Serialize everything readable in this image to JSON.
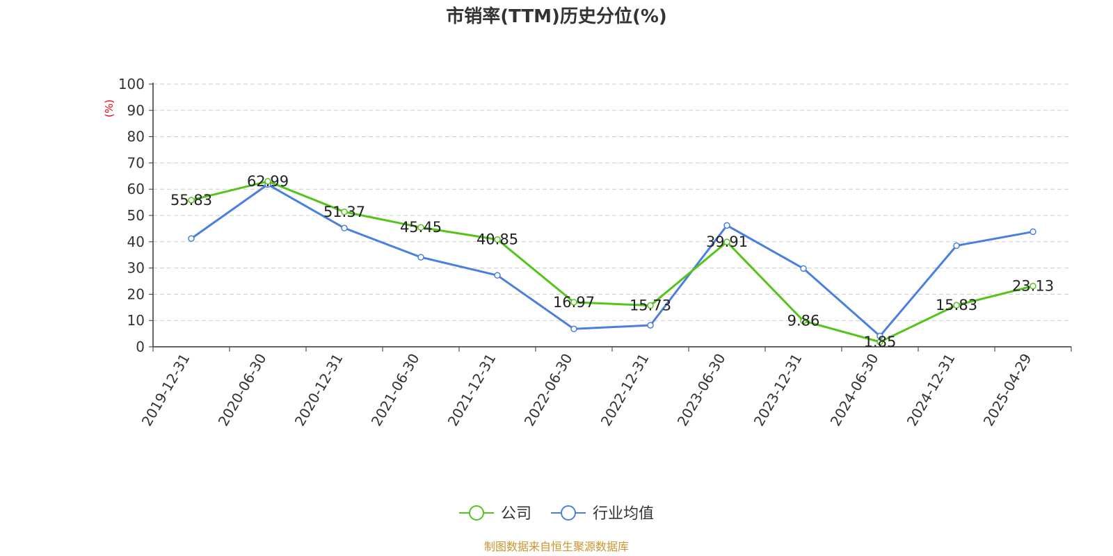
{
  "chart_data": {
    "type": "line",
    "title": "市销率(TTM)历史分位(%)",
    "ylabel": "(%)",
    "ylim": [
      0,
      100
    ],
    "y_ticks": [
      0,
      10,
      20,
      30,
      40,
      50,
      60,
      70,
      80,
      90,
      100
    ],
    "grid": true,
    "legend_position": "bottom",
    "categories": [
      "2019-12-31",
      "2020-06-30",
      "2020-12-31",
      "2021-06-30",
      "2021-12-31",
      "2022-06-30",
      "2022-12-31",
      "2023-06-30",
      "2023-12-31",
      "2024-06-30",
      "2024-12-31",
      "2025-04-29"
    ],
    "series": [
      {
        "name": "公司",
        "color": "#52c41a",
        "show_labels": true,
        "values": [
          55.83,
          62.99,
          51.37,
          45.45,
          40.85,
          16.97,
          15.73,
          39.91,
          9.86,
          1.85,
          15.83,
          23.13
        ],
        "labels": [
          "55.83",
          "62.99",
          "51.37",
          "45.45",
          "40.85",
          "16.97",
          "15.73",
          "39.91",
          "9.86",
          "1.85",
          "15.83",
          "23.13"
        ]
      },
      {
        "name": "行业均值",
        "color": "#4a7fe0",
        "show_labels": false,
        "values": [
          41.2,
          61.8,
          45.2,
          34.1,
          27.2,
          6.8,
          8.2,
          46.2,
          29.8,
          4.1,
          38.5,
          43.8
        ]
      }
    ],
    "source": "制图数据来自恒生聚源数据库",
    "source_color": "#c8962d",
    "unit_color": "#e60012",
    "axis_color": "#333333",
    "grid_color": "#cccccc"
  }
}
